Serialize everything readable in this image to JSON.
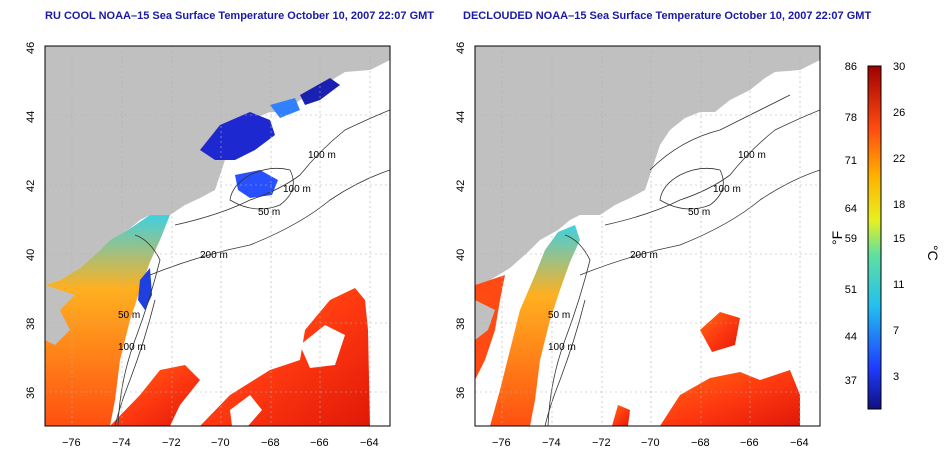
{
  "panels": [
    {
      "title": "RU COOL NOAA–15 Sea Surface Temperature October 10, 2007 22:07 GMT"
    },
    {
      "title": "DECLOUDED NOAA–15 Sea Surface Temperature October 10, 2007 22:07 GMT"
    }
  ],
  "axes": {
    "lon_ticks": [
      "−76",
      "−74",
      "−72",
      "−70",
      "−68",
      "−66",
      "−64"
    ],
    "lat_ticks": [
      "46",
      "44",
      "42",
      "40",
      "38",
      "36"
    ],
    "lon_range": [
      -77,
      -63
    ],
    "lat_range": [
      35,
      46
    ]
  },
  "contours": {
    "label_100m": "100 m",
    "label_50m": "50 m",
    "label_200m": "200 m"
  },
  "colorbar": {
    "fahrenheit_ticks": [
      "86",
      "78",
      "71",
      "64",
      "59",
      "51",
      "44",
      "37"
    ],
    "celsius_ticks": [
      "30",
      "26",
      "22",
      "18",
      "15",
      "11",
      "7",
      "3"
    ],
    "unit_f": "°F",
    "unit_c": "°C"
  },
  "colors": {
    "land": "#c0c0c0",
    "ocean_no_data": "#ffffff",
    "title": "#1a1aa6"
  }
}
